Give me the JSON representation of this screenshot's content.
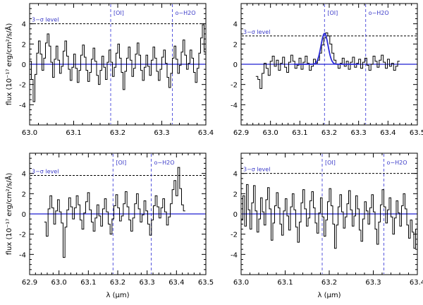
{
  "colors": {
    "data": "#000000",
    "zero": "#1f1fd0",
    "line_marker": "#5555dd",
    "sigma": "#000000",
    "label_text": "#3a3ac8",
    "fit": "#2b2bd8"
  },
  "chart_data": [
    {
      "type": "line",
      "panel": "top-left",
      "xlim": [
        63.0,
        63.4
      ],
      "ylim": [
        -6.0,
        6.0
      ],
      "xticks": [
        63.0,
        63.1,
        63.2,
        63.3,
        63.4
      ],
      "xtick_labels": [
        "63.0",
        "63.1",
        "63.2",
        "63.3",
        "63.4"
      ],
      "yticks": [
        -4,
        -2,
        0,
        2,
        4
      ],
      "ytick_labels": [
        "-4",
        "-2",
        "0",
        "2",
        "4"
      ],
      "ylabel": "flux (10⁻¹⁷ erg/cm²/s/Å)",
      "xlabel": "",
      "sigma_level": 4.0,
      "sigma_label": "3−σ level",
      "line_markers": [
        {
          "x": 63.184,
          "label": "[OI]"
        },
        {
          "x": 63.324,
          "label": "o−H2O"
        }
      ],
      "spectrum_x_start": 63.0,
      "spectrum_x_end": 63.4,
      "spectrum_y": [
        0.3,
        -1.5,
        -3.7,
        -1.0,
        1.1,
        2.3,
        1.0,
        -0.6,
        0.6,
        2.1,
        3.0,
        1.8,
        0.2,
        -1.3,
        0.5,
        1.8,
        0.4,
        -0.9,
        -0.2,
        1.3,
        2.3,
        0.8,
        -0.5,
        -1.6,
        -0.3,
        1.0,
        -0.4,
        -1.8,
        -0.6,
        0.9,
        1.9,
        0.7,
        -0.6,
        -1.7,
        -0.8,
        0.5,
        1.6,
        0.3,
        -1.1,
        -2.0,
        -0.6,
        0.8,
        -0.3,
        -1.5,
        0.2,
        1.4,
        0.2,
        -1.2,
        -0.3,
        1.1,
        2.0,
        0.6,
        -0.8,
        -2.5,
        -0.7,
        0.6,
        1.7,
        0.4,
        -1.2,
        -0.4,
        1.0,
        2.1,
        0.9,
        -0.6,
        -1.6,
        -0.3,
        0.9,
        -0.2,
        -1.1,
        0.4,
        1.7,
        0.6,
        -0.7,
        -1.6,
        -0.5,
        0.7,
        1.4,
        0.1,
        -1.3,
        -2.3,
        -0.9,
        0.6,
        1.8,
        0.5,
        -0.9,
        -0.1,
        1.2,
        2.4,
        0.9,
        -0.5,
        0.1,
        1.4,
        0.6,
        -0.8,
        -1.8,
        -0.4,
        1.1,
        2.6,
        3.9,
        1.2
      ],
      "fit": null
    },
    {
      "type": "line",
      "panel": "top-right",
      "xlim": [
        62.9,
        63.5
      ],
      "ylim": [
        -6.0,
        6.0
      ],
      "xticks": [
        62.9,
        63.0,
        63.1,
        63.2,
        63.3,
        63.4,
        63.5
      ],
      "xtick_labels": [
        "62.9",
        "63.0",
        "63.1",
        "63.2",
        "63.3",
        "63.4",
        "63.5"
      ],
      "yticks": [
        -4,
        -2,
        0,
        2,
        4
      ],
      "ytick_labels": [
        "-4",
        "-2",
        "0",
        "2",
        "4"
      ],
      "ylabel": "",
      "xlabel": "",
      "sigma_level": 2.8,
      "sigma_label": "3−σ level",
      "line_markers": [
        {
          "x": 63.184,
          "label": "[OI]"
        },
        {
          "x": 63.324,
          "label": "o−H2O"
        }
      ],
      "spectrum_x_start": 62.95,
      "spectrum_x_end": 63.44,
      "spectrum_y": [
        -1.2,
        -1.5,
        -2.4,
        -0.9,
        0.1,
        -0.4,
        -1.1,
        0.3,
        0.8,
        -0.2,
        0.4,
        -0.6,
        0.1,
        0.7,
        -0.3,
        -0.8,
        0.2,
        0.9,
        0.3,
        -0.4,
        -0.1,
        0.6,
        -0.5,
        0.2,
        0.8,
        0.1,
        -0.6,
        -0.2,
        0.5,
        0.1,
        0.4,
        1.1,
        1.9,
        2.6,
        3.1,
        2.8,
        2.0,
        1.1,
        0.4,
        0.0,
        -0.4,
        0.1,
        0.6,
        -0.2,
        0.3,
        -0.5,
        0.2,
        0.7,
        -0.3,
        0.1,
        0.5,
        -0.4,
        0.2,
        0.6,
        -0.1,
        -0.6,
        0.0,
        0.8,
        0.3,
        -0.3,
        0.4,
        0.9,
        0.2,
        -0.4,
        0.5,
        -0.2,
        0.1,
        -0.6,
        -0.2,
        0.3
      ],
      "fit": {
        "type": "gaussian",
        "amplitude": 3.05,
        "center": 63.184,
        "sigma": 0.012,
        "x_start": 63.08,
        "x_end": 63.3
      }
    },
    {
      "type": "line",
      "panel": "bottom-left",
      "xlim": [
        62.9,
        63.5
      ],
      "ylim": [
        -6.0,
        6.0
      ],
      "xticks": [
        62.9,
        63.0,
        63.1,
        63.2,
        63.3,
        63.4,
        63.5
      ],
      "xtick_labels": [
        "62.9",
        "63.0",
        "63.1",
        "63.2",
        "63.3",
        "63.4",
        "63.5"
      ],
      "yticks": [
        -4,
        -2,
        0,
        2,
        4
      ],
      "ytick_labels": [
        "-4",
        "-2",
        "0",
        "2",
        "4"
      ],
      "ylabel": "flux (10⁻¹⁷ erg/cm²/s/Å)",
      "xlabel": "λ (μm)",
      "sigma_level": 3.8,
      "sigma_label": "3−σ level",
      "line_markers": [
        {
          "x": 63.184,
          "label": "[OI]"
        },
        {
          "x": 63.314,
          "label": "o−H2O"
        }
      ],
      "spectrum_x_start": 62.95,
      "spectrum_x_end": 63.43,
      "spectrum_y": [
        -0.8,
        -2.2,
        0.5,
        1.8,
        0.6,
        -1.0,
        0.3,
        1.4,
        0.2,
        -0.9,
        -4.3,
        -1.3,
        0.4,
        1.6,
        0.7,
        -0.5,
        0.6,
        1.8,
        0.9,
        -0.6,
        -1.5,
        0.1,
        1.2,
        2.1,
        0.4,
        -0.8,
        -1.7,
        -0.4,
        0.9,
        -0.2,
        -1.2,
        0.5,
        1.5,
        0.2,
        -1.0,
        -2.0,
        -0.5,
        0.8,
        1.9,
        0.6,
        -0.7,
        -0.2,
        1.0,
        2.2,
        0.7,
        -0.6,
        -1.7,
        -0.4,
        1.0,
        2.0,
        0.5,
        -0.8,
        -0.1,
        1.3,
        0.3,
        -1.0,
        -2.1,
        -0.6,
        0.8,
        1.8,
        0.7,
        -0.4,
        0.6,
        1.5,
        0.2,
        -1.1,
        -0.3,
        1.0,
        2.4,
        3.3,
        1.8,
        4.6,
        2.5,
        0.9,
        0.3
      ],
      "fit": null
    },
    {
      "type": "line",
      "panel": "bottom-right",
      "xlim": [
        63.0,
        63.4
      ],
      "ylim": [
        -6.0,
        6.0
      ],
      "xticks": [
        63.0,
        63.1,
        63.2,
        63.3,
        63.4
      ],
      "xtick_labels": [
        "63.0",
        "63.1",
        "63.2",
        "63.3",
        "63.4"
      ],
      "yticks": [
        -4,
        -2,
        0,
        2,
        4
      ],
      "ytick_labels": [
        "-4",
        "-2",
        "0",
        "2",
        "4"
      ],
      "ylabel": "",
      "xlabel": "λ (μm)",
      "sigma_level": 4.0,
      "sigma_label": "3−σ level",
      "line_markers": [
        {
          "x": 63.184,
          "label": "[OI]"
        },
        {
          "x": 63.324,
          "label": "o−H2O"
        }
      ],
      "spectrum_x_start": 63.0,
      "spectrum_x_end": 63.4,
      "spectrum_y": [
        -0.6,
        1.8,
        -1.2,
        2.9,
        0.4,
        -1.5,
        1.1,
        2.8,
        0.3,
        -1.8,
        -0.5,
        1.6,
        0.2,
        -1.1,
        1.4,
        2.6,
        0.5,
        -2.6,
        -0.9,
        0.8,
        2.1,
        0.6,
        -1.0,
        -2.1,
        0.3,
        1.5,
        -0.2,
        -1.6,
        0.7,
        2.0,
        0.4,
        -1.3,
        -2.8,
        -0.8,
        1.1,
        2.4,
        0.5,
        -1.2,
        -0.4,
        1.3,
        2.2,
        0.6,
        -0.9,
        -1.9,
        0.1,
        1.6,
        -0.3,
        -2.2,
        -0.6,
        1.2,
        2.5,
        0.8,
        -1.0,
        -3.4,
        -1.1,
        0.7,
        1.9,
        0.2,
        -1.4,
        -0.3,
        1.0,
        2.3,
        0.4,
        -1.2,
        -0.2,
        1.8,
        0.5,
        -1.6,
        -2.7,
        -0.5,
        1.2,
        0.3,
        -1.0,
        0.6,
        1.9,
        0.2,
        -1.5,
        -3.0,
        -0.8,
        0.9,
        2.4,
        0.7,
        -0.9,
        0.4,
        1.6,
        -0.3,
        -2.0,
        -0.4,
        1.3,
        0.1,
        -1.2,
        0.8,
        2.0,
        0.5,
        -1.1,
        -2.4,
        -0.6,
        -1.8,
        -3.4,
        -1.5
      ]
    }
  ]
}
